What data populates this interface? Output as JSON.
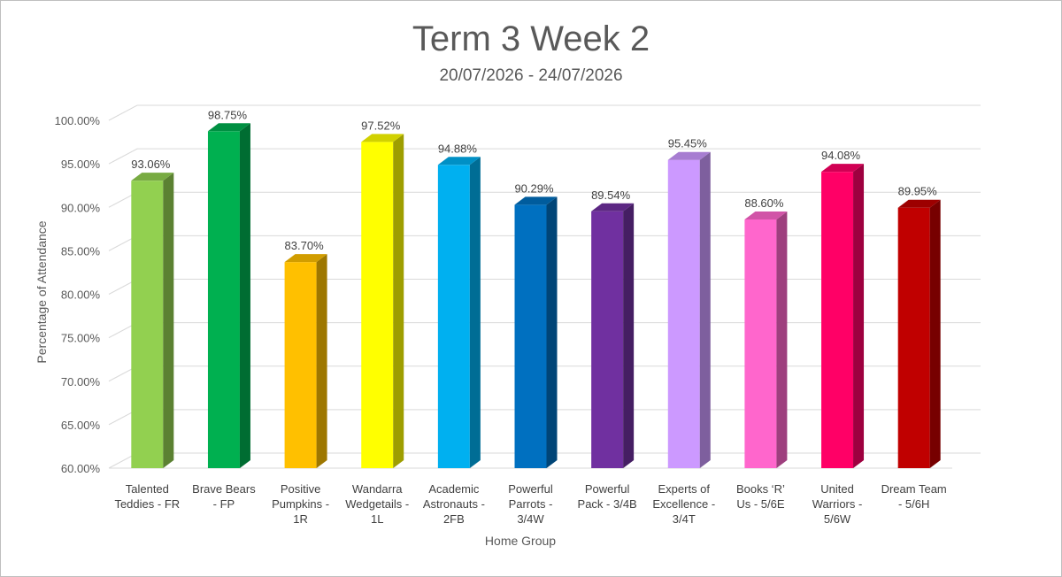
{
  "chart_data": {
    "type": "bar",
    "style": "3d-column",
    "title": "Term 3 Week 2",
    "subtitle": "20/07/2026 - 24/07/2026",
    "xlabel": "Home Group",
    "ylabel": "Percentage of Attendance",
    "ylim": [
      60,
      100
    ],
    "ytick_step": 5,
    "yticks": [
      "60.00%",
      "65.00%",
      "70.00%",
      "75.00%",
      "80.00%",
      "85.00%",
      "90.00%",
      "95.00%",
      "100.00%"
    ],
    "grid": true,
    "legend": "none",
    "categories": [
      [
        "Talented",
        "Teddies - FR"
      ],
      [
        "Brave Bears",
        "- FP"
      ],
      [
        "Positive",
        "Pumpkins -",
        "1R"
      ],
      [
        "Wandarra",
        "Wedgetails -",
        "1L"
      ],
      [
        "Academic",
        "Astronauts -",
        "2FB"
      ],
      [
        "Powerful",
        "Parrots -",
        "3/4W"
      ],
      [
        "Powerful",
        "Pack - 3/4B"
      ],
      [
        "Experts of",
        "Excellence -",
        "3/4T"
      ],
      [
        "Books ‘R’",
        "Us - 5/6E"
      ],
      [
        "United",
        "Warriors -",
        "5/6W"
      ],
      [
        "Dream Team",
        "- 5/6H"
      ]
    ],
    "values": [
      93.06,
      98.75,
      83.7,
      97.52,
      94.88,
      90.29,
      89.54,
      95.45,
      88.6,
      94.08,
      89.95
    ],
    "value_labels": [
      "93.06%",
      "98.75%",
      "83.70%",
      "97.52%",
      "94.88%",
      "90.29%",
      "89.54%",
      "95.45%",
      "88.60%",
      "94.08%",
      "89.95%"
    ],
    "colors": [
      "#92d050",
      "#00b050",
      "#ffc000",
      "#ffff00",
      "#00b0f0",
      "#0070c0",
      "#7030a0",
      "#cc99ff",
      "#ff66cc",
      "#ff0066",
      "#c00000"
    ]
  }
}
